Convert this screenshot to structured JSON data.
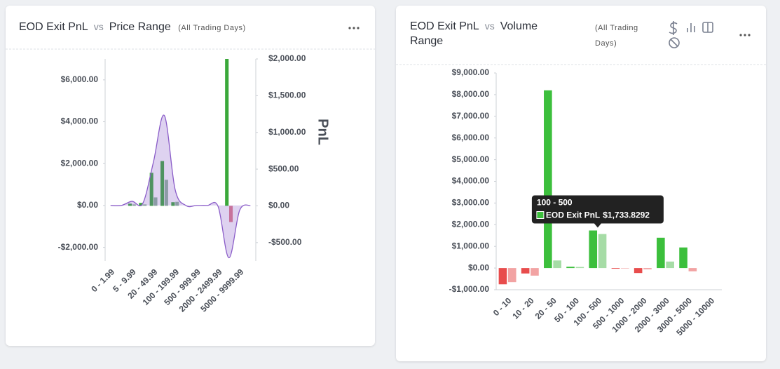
{
  "chart_data": [
    {
      "type": "bar",
      "title": "EOD Exit PnL",
      "vs": "vs",
      "subject": "Price Range",
      "scope": "(All Trading Days)",
      "y2_label": "PnL",
      "categories": [
        "0 - 1.99",
        null,
        "5 - 9.99",
        null,
        "20 - 49.99",
        null,
        "100 - 199.99",
        null,
        "500 - 999.99",
        null,
        "2000 - 2499.99",
        null,
        "5000 - 9999.99",
        null
      ],
      "series": [
        {
          "type": "bar",
          "axis": "y2",
          "color": "#3aa83a",
          "values": [
            0,
            0,
            30,
            40,
            450,
            610,
            50,
            0,
            0,
            0,
            0,
            2000,
            0,
            0
          ]
        },
        {
          "type": "bar",
          "axis": "y2",
          "color": "#8fb39a",
          "negative_color": "#e07a8a",
          "values": [
            0,
            0,
            20,
            20,
            115,
            355,
            55,
            0,
            0,
            0,
            0,
            -220,
            0,
            0
          ]
        },
        {
          "type": "area",
          "color": "#8a5cc8",
          "values": [
            0,
            0,
            200,
            100,
            2100,
            4300,
            770,
            0,
            0,
            0,
            -50,
            -2500,
            -230,
            0
          ]
        }
      ],
      "ylim": [
        -2650,
        7000
      ],
      "yticks": [
        {
          "value": -2000,
          "label": "-$2,000.00"
        },
        {
          "value": 0,
          "label": "$0.00"
        },
        {
          "value": 2000,
          "label": "$2,000.00"
        },
        {
          "value": 4000,
          "label": "$4,000.00"
        },
        {
          "value": 6000,
          "label": "$6,000.00"
        }
      ],
      "y2lim": [
        -750,
        2000
      ],
      "y2ticks": [
        {
          "value": -500,
          "label": "-$500.00"
        },
        {
          "value": 0,
          "label": "$0.00"
        },
        {
          "value": 500,
          "label": "$500.00"
        },
        {
          "value": 1000,
          "label": "$1,000.00"
        },
        {
          "value": 1500,
          "label": "$1,500.00"
        },
        {
          "value": 2000,
          "label": "$2,000.00"
        }
      ],
      "grid": false
    },
    {
      "type": "bar",
      "title": "EOD Exit PnL",
      "vs": "vs",
      "subject": "Volume Range",
      "scope": "(All Trading Days)",
      "categories": [
        "0 - 10",
        "10 - 20",
        "20 - 50",
        "50 - 100",
        "100 - 500",
        "500 - 1000",
        "1000 - 2000",
        "2000 - 3000",
        "3000 - 5000",
        "5000 - 10000"
      ],
      "series": [
        {
          "type": "bar",
          "name": "EOD Exit PnL",
          "color": "#3cbf3c",
          "negative_color": "#e84c4c",
          "values": [
            -750,
            -250,
            8200,
            60,
            1733.8292,
            -30,
            -230,
            1400,
            950,
            0
          ],
          "value_labels": [
            null,
            null,
            null,
            null,
            "$1,733.8292",
            null,
            null,
            null,
            null,
            null
          ]
        },
        {
          "type": "bar",
          "color": "#a6dca6",
          "negative_color": "#f2a3a3",
          "values": [
            -650,
            -350,
            350,
            50,
            1570,
            -20,
            -60,
            300,
            -150,
            0
          ]
        }
      ],
      "ylim": [
        -1000,
        9000
      ],
      "yticks": [
        {
          "value": -1000,
          "label": "-$1,000.00"
        },
        {
          "value": 0,
          "label": "$0.00"
        },
        {
          "value": 1000,
          "label": "$1,000.00"
        },
        {
          "value": 2000,
          "label": "$2,000.00"
        },
        {
          "value": 3000,
          "label": "$3,000.00"
        },
        {
          "value": 4000,
          "label": "$4,000.00"
        },
        {
          "value": 5000,
          "label": "$5,000.00"
        },
        {
          "value": 6000,
          "label": "$6,000.00"
        },
        {
          "value": 7000,
          "label": "$7,000.00"
        },
        {
          "value": 8000,
          "label": "$8,000.00"
        },
        {
          "value": 9000,
          "label": "$9,000.00"
        }
      ],
      "grid": false
    }
  ]
}
